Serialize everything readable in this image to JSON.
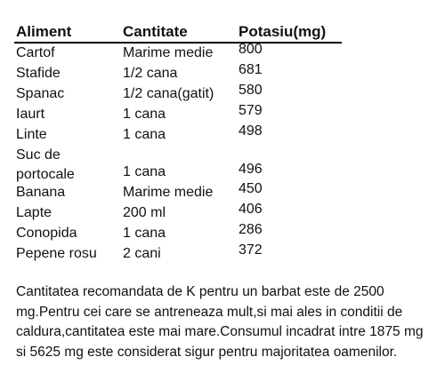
{
  "table": {
    "headers": [
      "Aliment",
      "Cantitate",
      "Potasiu(mg)"
    ],
    "rows": [
      {
        "aliment": "Cartof",
        "cantitate": "Marime medie",
        "potasiu": "800"
      },
      {
        "aliment": "Stafide",
        "cantitate": "1/2 cana",
        "potasiu": "681"
      },
      {
        "aliment": "Spanac",
        "cantitate": "1/2 cana(gatit)",
        "potasiu": "580"
      },
      {
        "aliment": "Iaurt",
        "cantitate": "1 cana",
        "potasiu": "579"
      },
      {
        "aliment": "Linte",
        "cantitate": "1 cana",
        "potasiu": "498"
      },
      {
        "aliment": "Suc de portocale",
        "cantitate": "1 cana",
        "potasiu": "496"
      },
      {
        "aliment": "Banana",
        "cantitate": "Marime medie",
        "potasiu": "450"
      },
      {
        "aliment": "Lapte",
        "cantitate": "200 ml",
        "potasiu": "406"
      },
      {
        "aliment": "Conopida",
        "cantitate": "1 cana",
        "potasiu": "286"
      },
      {
        "aliment": "Pepene rosu",
        "cantitate": "2 cani",
        "potasiu": "372"
      }
    ]
  },
  "note": "Cantitatea recomandata de K pentru un barbat este de 2500 mg.Pentru cei care se antreneaza mult,si mai ales in conditii de caldura,cantitatea este mai mare.Consumul incadrat intre 1875 mg si 5625 mg este considerat sigur pentru majoritatea oamenilor."
}
